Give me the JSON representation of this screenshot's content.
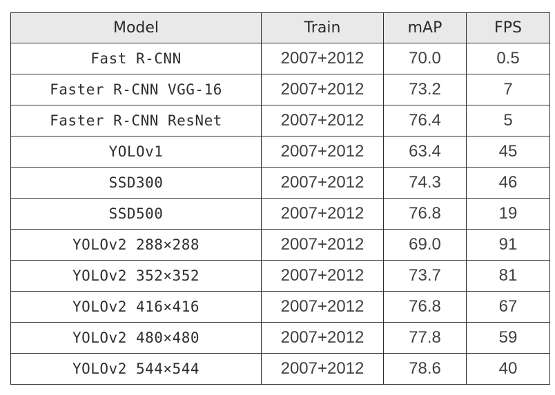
{
  "table": {
    "headers": [
      "Model",
      "Train",
      "mAP",
      "FPS"
    ],
    "rows": [
      {
        "model": "Fast R-CNN",
        "train": "2007+2012",
        "map": "70.0",
        "fps": "0.5"
      },
      {
        "model": "Faster R-CNN VGG-16",
        "train": "2007+2012",
        "map": "73.2",
        "fps": "7"
      },
      {
        "model": "Faster R-CNN ResNet",
        "train": "2007+2012",
        "map": "76.4",
        "fps": "5"
      },
      {
        "model": "YOLOv1",
        "train": "2007+2012",
        "map": "63.4",
        "fps": "45"
      },
      {
        "model": "SSD300",
        "train": "2007+2012",
        "map": "74.3",
        "fps": "46"
      },
      {
        "model": "SSD500",
        "train": "2007+2012",
        "map": "76.8",
        "fps": "19"
      },
      {
        "model": "YOLOv2 288×288",
        "train": "2007+2012",
        "map": "69.0",
        "fps": "91"
      },
      {
        "model": "YOLOv2 352×352",
        "train": "2007+2012",
        "map": "73.7",
        "fps": "81"
      },
      {
        "model": "YOLOv2 416×416",
        "train": "2007+2012",
        "map": "76.8",
        "fps": "67"
      },
      {
        "model": "YOLOv2 480×480",
        "train": "2007+2012",
        "map": "77.8",
        "fps": "59"
      },
      {
        "model": "YOLOv2 544×544",
        "train": "2007+2012",
        "map": "78.6",
        "fps": "40"
      }
    ]
  },
  "colors": {
    "header_background": "#e9e9e9",
    "border": "#2b2b2b",
    "text": "#3a3a3a"
  }
}
